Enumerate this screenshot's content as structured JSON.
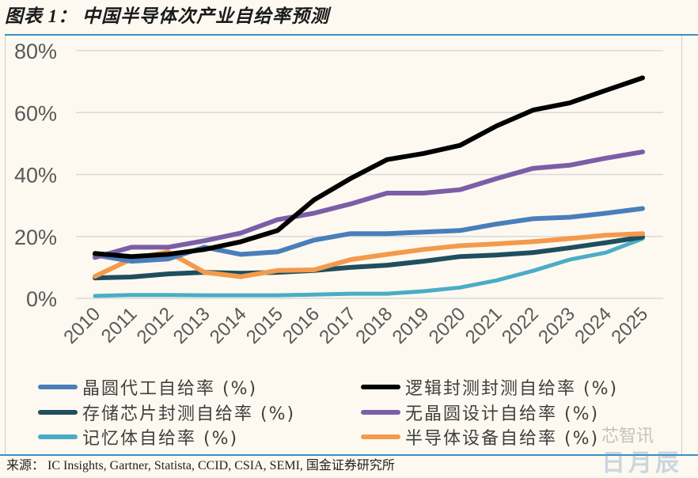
{
  "figure": {
    "title": "图表 1： 中国半导体次产业自给率预测",
    "source": "来源： IC Insights, Gartner, Statista, CCID, CSIA, SEMI, 国金证券研究所",
    "watermark_primary": "芯智讯",
    "watermark_secondary": "日月辰"
  },
  "chart_data": {
    "type": "line",
    "title": "中国半导体次产业自给率预测",
    "xlabel": "",
    "ylabel": "",
    "x": [
      "2010",
      "2011",
      "2012",
      "2013",
      "2014",
      "2015",
      "2016",
      "2017",
      "2018",
      "2019",
      "2020",
      "2021",
      "2022",
      "2023",
      "2024",
      "2025"
    ],
    "ylim": [
      0,
      80
    ],
    "yticks": [
      0,
      20,
      40,
      60,
      80
    ],
    "ytick_labels": [
      "0%",
      "20%",
      "40%",
      "60%",
      "80%"
    ],
    "grid": true,
    "legend_position": "bottom",
    "series": [
      {
        "name": "晶圆代工自给率 (%)",
        "color": "#4a7ebb",
        "values": [
          14,
          12,
          12.7,
          16.5,
          14.2,
          15,
          18.8,
          20.9,
          20.9,
          21.4,
          21.9,
          24,
          25.7,
          26.2,
          27.5,
          29
        ]
      },
      {
        "name": "逻辑封测封测自给率 (%)",
        "color": "#000000",
        "values": [
          14.5,
          13.5,
          14.2,
          15.8,
          18.3,
          21.9,
          31.8,
          38.7,
          44.8,
          46.8,
          49.4,
          55.7,
          60.8,
          63.1,
          67.2,
          71.2
        ]
      },
      {
        "name": "存储芯片封测自给率 (%)",
        "color": "#1f4e5f",
        "values": [
          6.6,
          6.9,
          7.9,
          8.4,
          8.1,
          8.4,
          9,
          10,
          10.7,
          12,
          13.5,
          14,
          14.8,
          16.3,
          18,
          19.8
        ]
      },
      {
        "name": "无晶圆设计自给率 (%)",
        "color": "#7b5ea7",
        "values": [
          13.2,
          16.5,
          16.5,
          18.6,
          21.1,
          25.4,
          27.5,
          30.5,
          34,
          34,
          35.1,
          38.7,
          42,
          43,
          45.3,
          47.3
        ]
      },
      {
        "name": "记忆体自给率 (%)",
        "color": "#4bacc6",
        "values": [
          0.8,
          1.1,
          1.1,
          1,
          1,
          1,
          1.2,
          1.5,
          1.5,
          2.3,
          3.5,
          5.8,
          8.9,
          12.5,
          14.8,
          19.3
        ]
      },
      {
        "name": "半导体设备自给率 (%)",
        "color": "#f39a4d",
        "values": [
          7.1,
          12.7,
          15,
          8.4,
          7,
          9,
          9.2,
          12.5,
          14.2,
          15.8,
          17,
          17.6,
          18.3,
          19.3,
          20.4,
          20.9
        ]
      }
    ]
  },
  "legend": {
    "items": [
      {
        "label": "晶圆代工自给率 (%)",
        "color": "#4a7ebb"
      },
      {
        "label": "逻辑封测封测自给率 (%)",
        "color": "#000000"
      },
      {
        "label": "存储芯片封测自给率 (%)",
        "color": "#1f4e5f"
      },
      {
        "label": "无晶圆设计自给率 (%)",
        "color": "#7b5ea7"
      },
      {
        "label": "记忆体自给率 (%)",
        "color": "#4bacc6"
      },
      {
        "label": "半导体设备自给率 (%)",
        "color": "#f39a4d"
      }
    ]
  }
}
